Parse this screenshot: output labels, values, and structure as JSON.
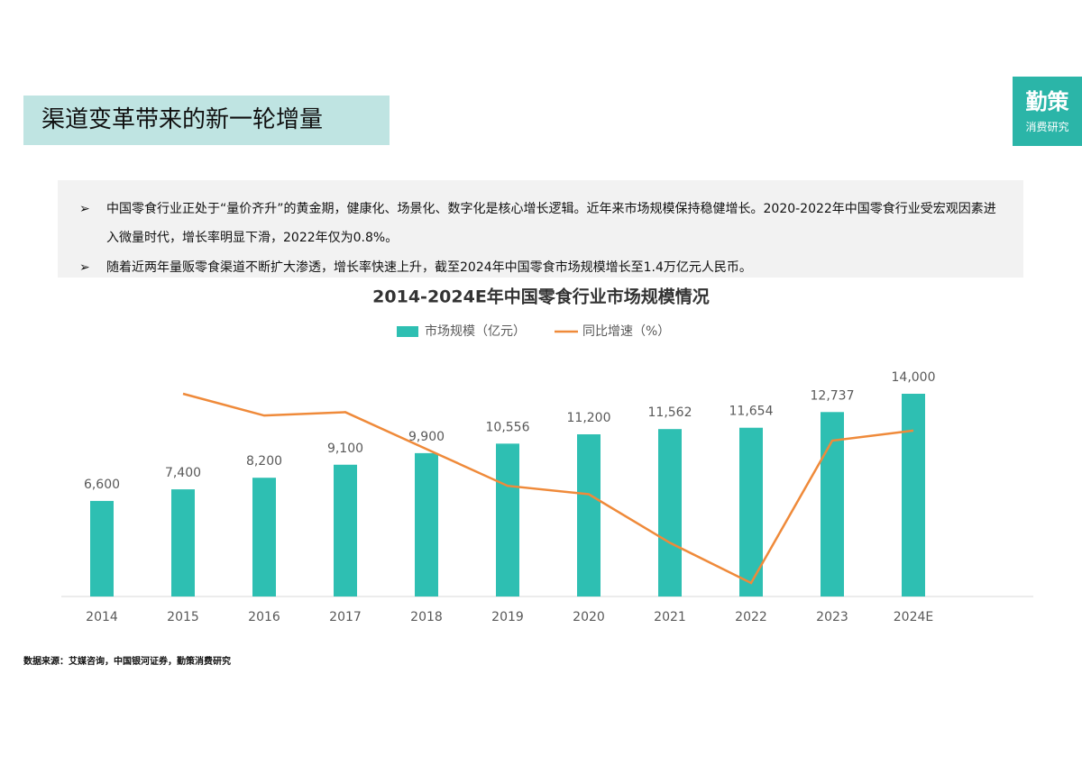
{
  "header": {
    "title": "渠道变革带来的新一轮增量"
  },
  "logo": {
    "name": "勤策",
    "subtitle": "消费研究"
  },
  "bullets": [
    "中国零食行业正处于“量价齐升”的黄金期，健康化、场景化、数字化是核心增长逻辑。近年来市场规模保持稳健增长。2020-2022年中国零食行业受宏观因素进入微量时代，增长率明显下滑，2022年仅为0.8%。",
    "随着近两年量贩零食渠道不断扩大渗透，增长率快速上升，截至2024年中国零食市场规模增长至1.4万亿元人民币。"
  ],
  "chart_data": {
    "type": "bar-line",
    "title": "2014-2024E年中国零食行业市场规模情况",
    "categories": [
      "2014",
      "2015",
      "2016",
      "2017",
      "2018",
      "2019",
      "2020",
      "2021",
      "2022",
      "2023",
      "2024E"
    ],
    "series": [
      {
        "name": "市场规模（亿元）",
        "type": "bar",
        "color": "#2ebfb2",
        "values": [
          6600,
          7400,
          8200,
          9100,
          9900,
          10556,
          11200,
          11562,
          11654,
          12737,
          14000
        ],
        "value_labels": [
          "6,600",
          "7,400",
          "8,200",
          "9,100",
          "9,900",
          "10,556",
          "11,200",
          "11,562",
          "11,654",
          "12,737",
          "14,000"
        ]
      },
      {
        "name": "同比增速（%）",
        "type": "line",
        "axis": "y2",
        "color": "#ef8a3a",
        "values": [
          null,
          12.1,
          10.8,
          11.0,
          8.8,
          6.6,
          6.1,
          3.2,
          0.8,
          9.3,
          9.9
        ]
      }
    ]
  },
  "source": "数据来源：艾媒咨询，中国银河证券，勤策消费研究"
}
